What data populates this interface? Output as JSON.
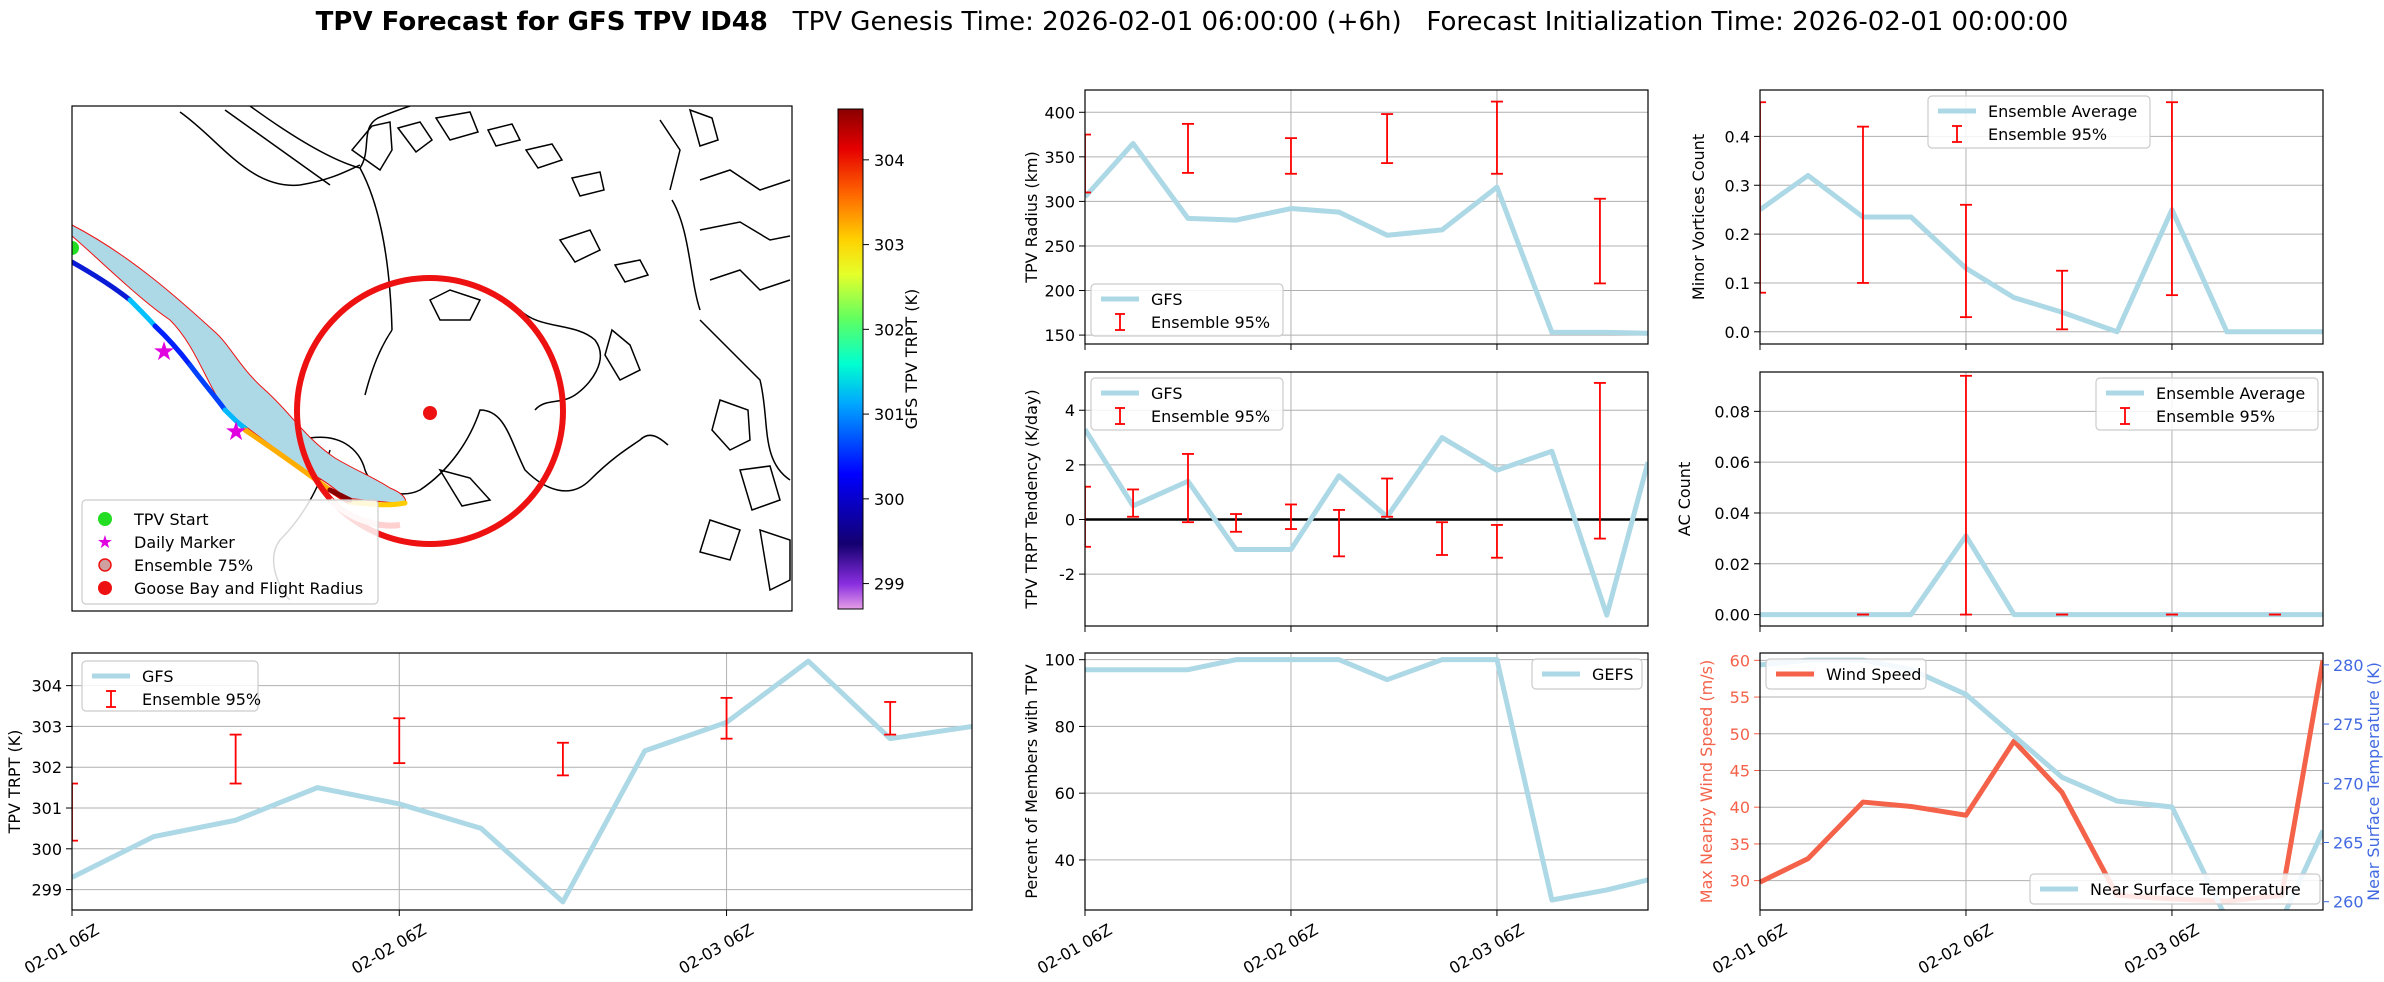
{
  "figure": {
    "title_bold": "TPV Forecast for GFS TPV ID48",
    "title_rest": "   TPV Genesis Time: 2026-02-01 06:00:00 (+6h)   Forecast Initialization Time: 2026-02-01 00:00:00"
  },
  "colors": {
    "gfs_line": "#add8e6",
    "ensemble_err": "#ff0000",
    "wind": "#f4624a",
    "temp_axis": "#4169e1",
    "wind_axis": "#f4624a",
    "zero_line": "#000000",
    "track_shade": "#add8e6",
    "flight_radius": "#ee1111"
  },
  "map": {
    "colorbar_label": "GFS TPV TRPT (K)",
    "colorbar_ticks": [
      "304",
      "303",
      "302",
      "301",
      "300",
      "299"
    ],
    "colorbar_range": [
      298.7,
      304.6
    ],
    "legend": [
      "TPV Start",
      "Daily Marker",
      "Ensemble 75%",
      "Goose Bay and Flight Radius"
    ]
  },
  "x_ticks": [
    "02-01 06Z",
    "02-02 06Z",
    "02-03 06Z"
  ],
  "chart_data": [
    {
      "id": "trpt",
      "type": "line",
      "ylabel": "TPV TRPT (K)",
      "xlim": [
        0,
        66
      ],
      "ylim": [
        298.5,
        304.8
      ],
      "yticks": [
        299,
        300,
        301,
        302,
        303,
        304
      ],
      "grid": true,
      "legend_position": "upper-left",
      "series": [
        {
          "name": "GFS",
          "x": [
            0,
            6,
            12,
            18,
            24,
            30,
            36,
            42,
            48,
            54,
            60,
            66
          ],
          "values": [
            299.3,
            300.3,
            300.7,
            301.5,
            301.1,
            300.5,
            298.7,
            302.4,
            303.1,
            304.6,
            302.7,
            303.0
          ]
        }
      ],
      "errorbars": {
        "name": "Ensemble 95%",
        "x": [
          0,
          12,
          24,
          36,
          48,
          60
        ],
        "low": [
          300.2,
          301.6,
          302.1,
          301.8,
          302.7,
          302.8
        ],
        "high": [
          301.6,
          302.8,
          303.2,
          302.6,
          303.7,
          303.6
        ]
      }
    },
    {
      "id": "radius",
      "type": "line",
      "ylabel": "TPV Radius (km)",
      "xlim": [
        0,
        41
      ],
      "ylim": [
        140,
        425
      ],
      "yticks": [
        150,
        200,
        250,
        300,
        350,
        400
      ],
      "grid": true,
      "legend_position": "lower-left",
      "series": [
        {
          "name": "GFS",
          "x": [
            0,
            3.5,
            7.5,
            11,
            15,
            18.5,
            22,
            26,
            30,
            34,
            38,
            41
          ],
          "values": [
            305,
            365,
            281,
            279,
            292,
            288,
            262,
            268,
            316,
            153,
            153,
            152
          ]
        }
      ],
      "errorbars": {
        "name": "Ensemble 95%",
        "x": [
          0,
          7.5,
          15,
          22,
          30,
          37.5
        ],
        "low": [
          310,
          332,
          331,
          343,
          331,
          208
        ],
        "high": [
          375,
          387,
          371,
          398,
          412,
          303
        ]
      }
    },
    {
      "id": "minor",
      "type": "line",
      "ylabel": "Minor Vortices Count",
      "xlim": [
        0,
        41
      ],
      "ylim": [
        -0.025,
        0.495
      ],
      "yticks": [
        0.0,
        0.1,
        0.2,
        0.3,
        0.4
      ],
      "grid": true,
      "legend_position": "upper-center",
      "series": [
        {
          "name": "Ensemble Average",
          "x": [
            0,
            3.5,
            7.5,
            11,
            15,
            18.5,
            22,
            26,
            30,
            34,
            38,
            41
          ],
          "values": [
            0.25,
            0.32,
            0.235,
            0.235,
            0.13,
            0.07,
            0.04,
            0.0,
            0.25,
            0.0,
            0.0,
            0.0
          ]
        }
      ],
      "errorbars": {
        "name": "Ensemble 95%",
        "x": [
          0,
          7.5,
          15,
          22,
          30
        ],
        "low": [
          0.08,
          0.1,
          0.03,
          0.005,
          0.075
        ],
        "high": [
          0.47,
          0.42,
          0.26,
          0.125,
          0.47
        ]
      }
    },
    {
      "id": "tendency",
      "type": "line",
      "ylabel": "TPV TRPT Tendency (K/day)",
      "xlim": [
        0,
        41
      ],
      "ylim": [
        -3.9,
        5.4
      ],
      "yticks": [
        -2,
        0,
        2,
        4
      ],
      "grid": true,
      "legend_position": "upper-left",
      "zero_line": 0,
      "series": [
        {
          "name": "GFS",
          "x": [
            0,
            3.5,
            7.5,
            11,
            15,
            18.5,
            22,
            26,
            30,
            34,
            38,
            41
          ],
          "values": [
            3.3,
            0.5,
            1.4,
            -1.1,
            -1.1,
            1.6,
            0.1,
            3.0,
            1.8,
            2.5,
            -3.5,
            2.1
          ]
        }
      ],
      "errorbars": {
        "name": "Ensemble 95%",
        "x": [
          0,
          3.5,
          7.5,
          11,
          15,
          18.5,
          22,
          26,
          30,
          37.5
        ],
        "low": [
          -1.0,
          0.1,
          -0.1,
          -0.45,
          -0.35,
          -1.35,
          0.1,
          -1.3,
          -1.4,
          -0.7
        ],
        "high": [
          1.2,
          1.1,
          2.4,
          0.2,
          0.55,
          0.35,
          1.5,
          -0.1,
          -0.2,
          5.0
        ]
      }
    },
    {
      "id": "ac",
      "type": "line",
      "ylabel": "AC Count",
      "xlim": [
        0,
        41
      ],
      "ylim": [
        -0.0045,
        0.0955
      ],
      "yticks": [
        0.0,
        0.02,
        0.04,
        0.06,
        0.08
      ],
      "grid": true,
      "legend_position": "upper-right",
      "series": [
        {
          "name": "Ensemble Average",
          "x": [
            0,
            3.5,
            7.5,
            11,
            15,
            18.5,
            22,
            26,
            30,
            34,
            38,
            41
          ],
          "values": [
            0,
            0,
            0,
            0,
            0.031,
            0,
            0,
            0,
            0,
            0,
            0,
            0
          ]
        }
      ],
      "errorbars": {
        "name": "Ensemble 95%",
        "x": [
          7.5,
          15,
          22,
          30,
          37.5
        ],
        "low": [
          0,
          0,
          0,
          0,
          0
        ],
        "high": [
          0,
          0.094,
          0,
          0,
          0
        ]
      }
    },
    {
      "id": "percent",
      "type": "line",
      "ylabel": "Percent of Members with TPV",
      "xlim": [
        0,
        41
      ],
      "ylim": [
        25,
        102
      ],
      "yticks": [
        40,
        60,
        80,
        100
      ],
      "grid": true,
      "legend_position": "upper-right",
      "series": [
        {
          "name": "GEFS",
          "x": [
            0,
            3.5,
            7.5,
            11,
            15,
            18.5,
            22,
            26,
            30,
            34,
            38,
            41
          ],
          "values": [
            97,
            97,
            97,
            100,
            100,
            100,
            94,
            100,
            100,
            28,
            31,
            34
          ]
        }
      ]
    },
    {
      "id": "wind_temp",
      "type": "line",
      "ylabel_left": "Max Nearby Wind Speed (m/s)",
      "ylabel_right": "Near Surface Temperature (K)",
      "xlim": [
        0,
        41
      ],
      "ylim_left": [
        26,
        61
      ],
      "ylim_right": [
        259.3,
        281
      ],
      "yticks_left": [
        30,
        35,
        40,
        45,
        50,
        55,
        60
      ],
      "yticks_right": [
        260,
        265,
        270,
        275,
        280
      ],
      "grid": true,
      "series": [
        {
          "name": "Wind Speed",
          "axis": "left",
          "x": [
            0,
            3.5,
            7.5,
            11,
            15,
            18.5,
            22,
            26,
            30,
            34,
            38,
            41
          ],
          "values": [
            29.8,
            33,
            40.7,
            40.1,
            38.9,
            49,
            42,
            28,
            27.5,
            27.2,
            28,
            60
          ]
        },
        {
          "name": "Near Surface Temperature",
          "axis": "right",
          "x": [
            0,
            3.5,
            7.5,
            11,
            15,
            18.5,
            22,
            26,
            30,
            34,
            38,
            41
          ],
          "values": [
            280,
            280.4,
            280.4,
            279.6,
            277.5,
            274,
            270.5,
            268.5,
            268,
            258.5,
            258.5,
            266
          ]
        }
      ]
    }
  ]
}
